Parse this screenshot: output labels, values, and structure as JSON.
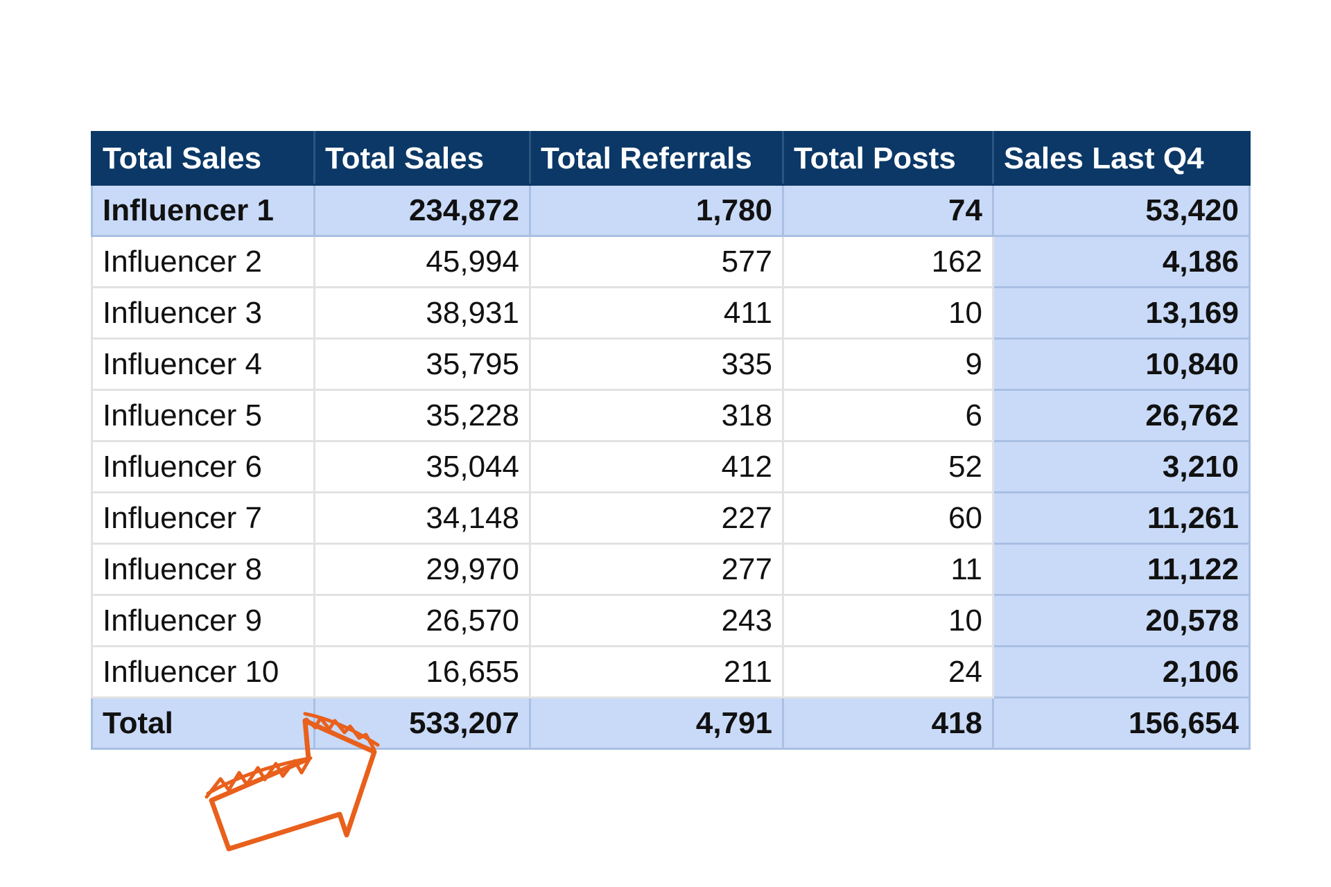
{
  "chart_data": {
    "type": "table",
    "columns": [
      "Total Sales",
      "Total Sales",
      "Total Referrals",
      "Total Posts",
      "Sales Last Q4"
    ],
    "rows": [
      [
        "Influencer 1",
        "234,872",
        "1,780",
        "74",
        "53,420"
      ],
      [
        "Influencer 2",
        "45,994",
        "577",
        "162",
        "4,186"
      ],
      [
        "Influencer 3",
        "38,931",
        "411",
        "10",
        "13,169"
      ],
      [
        "Influencer 4",
        "35,795",
        "335",
        "9",
        "10,840"
      ],
      [
        "Influencer 5",
        "35,228",
        "318",
        "6",
        "26,762"
      ],
      [
        "Influencer 6",
        "35,044",
        "412",
        "52",
        "3,210"
      ],
      [
        "Influencer 7",
        "34,148",
        "227",
        "60",
        "11,261"
      ],
      [
        "Influencer 8",
        "29,970",
        "277",
        "11",
        "11,122"
      ],
      [
        "Influencer 9",
        "26,570",
        "243",
        "10",
        "20,578"
      ],
      [
        "Influencer 10",
        "16,655",
        "211",
        "24",
        "2,106"
      ]
    ],
    "total_row": [
      "Total",
      "533,207",
      "4,791",
      "418",
      "156,654"
    ],
    "highlighted_rows": [
      "Influencer 1",
      "Total"
    ],
    "highlighted_column": "Sales Last Q4"
  },
  "colors": {
    "header_bg": "#0b3866",
    "highlight_bg": "#c9daf8",
    "arrow": "#e8601c"
  },
  "annotation": {
    "icon": "hand-drawn-arrow-icon"
  }
}
